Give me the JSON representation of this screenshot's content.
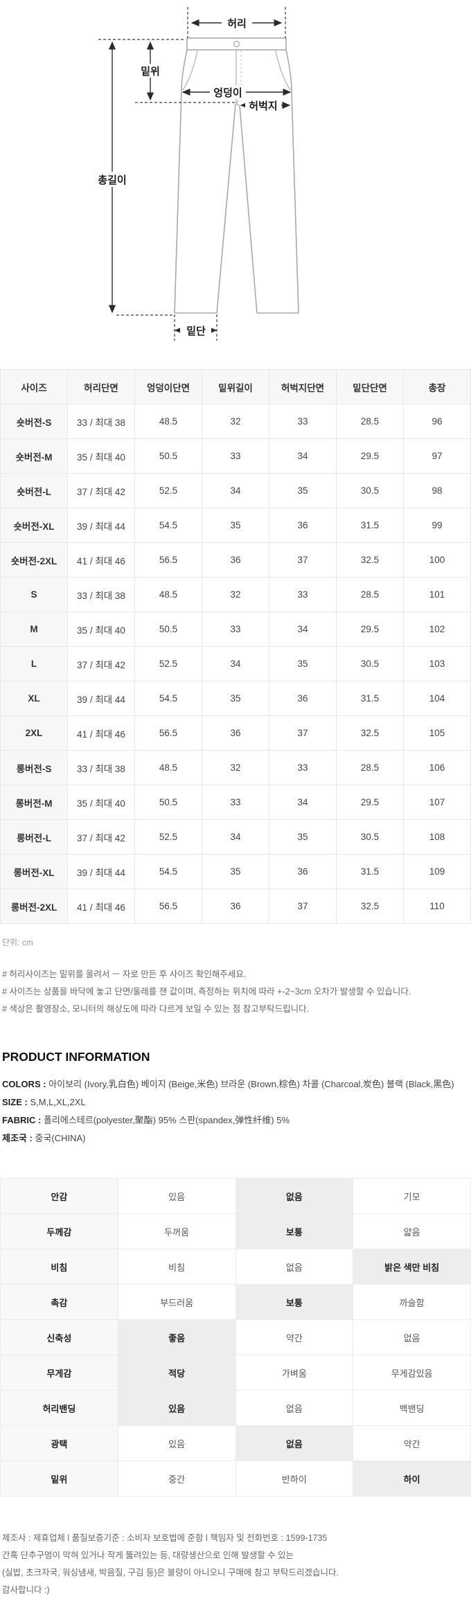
{
  "colors": {
    "table_border": "#e7e7e7",
    "header_bg": "#f7f7f7",
    "highlight_bg": "#ededed",
    "diagram_line": "#a9a9a9",
    "arrow_color": "#2b2b2b",
    "muted_text": "#999999"
  },
  "diagram": {
    "labels": {
      "waist": "허리",
      "rise": "밑위",
      "hip": "엉덩이",
      "thigh": "허벅지",
      "total_length": "총길이",
      "hem": "밑단"
    }
  },
  "size_table": {
    "headers": [
      "사이즈",
      "허리단면",
      "엉덩이단면",
      "밑위길이",
      "허벅지단면",
      "밑단단면",
      "총장"
    ],
    "rows": [
      [
        "숏버전-S",
        "33 / 최대 38",
        "48.5",
        "32",
        "33",
        "28.5",
        "96"
      ],
      [
        "숏버전-M",
        "35 / 최대 40",
        "50.5",
        "33",
        "34",
        "29.5",
        "97"
      ],
      [
        "숏버전-L",
        "37 / 최대 42",
        "52.5",
        "34",
        "35",
        "30.5",
        "98"
      ],
      [
        "숏버전-XL",
        "39 / 최대 44",
        "54.5",
        "35",
        "36",
        "31.5",
        "99"
      ],
      [
        "숏버전-2XL",
        "41 / 최대 46",
        "56.5",
        "36",
        "37",
        "32.5",
        "100"
      ],
      [
        "S",
        "33 / 최대 38",
        "48.5",
        "32",
        "33",
        "28.5",
        "101"
      ],
      [
        "M",
        "35 / 최대 40",
        "50.5",
        "33",
        "34",
        "29.5",
        "102"
      ],
      [
        "L",
        "37 / 최대 42",
        "52.5",
        "34",
        "35",
        "30.5",
        "103"
      ],
      [
        "XL",
        "39 / 최대 44",
        "54.5",
        "35",
        "36",
        "31.5",
        "104"
      ],
      [
        "2XL",
        "41 / 최대 46",
        "56.5",
        "36",
        "37",
        "32.5",
        "105"
      ],
      [
        "롱버전-S",
        "33 / 최대 38",
        "48.5",
        "32",
        "33",
        "28.5",
        "106"
      ],
      [
        "롱버전-M",
        "35 / 최대 40",
        "50.5",
        "33",
        "34",
        "29.5",
        "107"
      ],
      [
        "롱버전-L",
        "37 / 최대 42",
        "52.5",
        "34",
        "35",
        "30.5",
        "108"
      ],
      [
        "롱버전-XL",
        "39 / 최대 44",
        "54.5",
        "35",
        "36",
        "31.5",
        "109"
      ],
      [
        "롱버전-2XL",
        "41 / 최대 46",
        "56.5",
        "36",
        "37",
        "32.5",
        "110"
      ]
    ]
  },
  "notes": {
    "unit": "단위: cm",
    "lines": [
      "# 허리사이즈는 밑위를 올려서 ㅡ 자로 만든 후 사이즈 확인해주세요.",
      "# 사이즈는 상품을 바닥에 놓고 단면/둘레를 잰 값이며, 측정하는 위치에 따라 +-2~3cm 오차가 발생할 수 있습니다.",
      "# 색상은 촬영장소, 모니터의 해상도에 따라 다르게 보일 수 있는 점 참고부탁드립니다."
    ]
  },
  "product_info": {
    "title": "PRODUCT INFORMATION",
    "lines": [
      {
        "label": "COLORS",
        "value": "아이보리 (Ivory,乳白色) 베이지 (Beige,米色) 브라운 (Brown,棕色) 차콜 (Charcoal,炭色) 블랙 (Black,黑色)"
      },
      {
        "label": "SIZE",
        "value": "S,M,L,XL,2XL"
      },
      {
        "label": "FABRIC",
        "value": "폴리에스테르(polyester,聚酯) 95% 스판(spandex,弹性纤维) 5%"
      },
      {
        "label": "제조국",
        "value": "중국(CHINA)"
      }
    ]
  },
  "attribute_table": {
    "rows": [
      {
        "name": "안감",
        "options": [
          "있음",
          "없음",
          "기모"
        ],
        "selected": 1
      },
      {
        "name": "두께감",
        "options": [
          "두꺼움",
          "보통",
          "얇음"
        ],
        "selected": 1
      },
      {
        "name": "비침",
        "options": [
          "비침",
          "없음",
          "밝은 색만 비침"
        ],
        "selected": 2
      },
      {
        "name": "촉감",
        "options": [
          "부드러움",
          "보통",
          "까슬함"
        ],
        "selected": 1
      },
      {
        "name": "신축성",
        "options": [
          "좋음",
          "약간",
          "없음"
        ],
        "selected": 0
      },
      {
        "name": "무게감",
        "options": [
          "적당",
          "가벼움",
          "무게감있음"
        ],
        "selected": 0
      },
      {
        "name": "허리밴딩",
        "options": [
          "있음",
          "없음",
          "백밴딩"
        ],
        "selected": 0
      },
      {
        "name": "광택",
        "options": [
          "있음",
          "없음",
          "약간"
        ],
        "selected": 1
      },
      {
        "name": "밑위",
        "options": [
          "중간",
          "반하이",
          "하이"
        ],
        "selected": 2
      }
    ]
  },
  "footer": {
    "lines": [
      "제조사 : 제휴업체 l 품질보증기준 : 소비자 보호법에 준함 l 책임자 및 전화번호 : 1599-1735",
      "간혹 단추구멍이 막혀 있거나 작게 뚫려있는 등, 대량생산으로 인해 발생할 수 있는",
      "(실밥, 초크자국, 워싱냄새, 박음질, 구김 등)은 불량이 아니오니 구매에 참고 부탁드리겠습니다.",
      "감사합니다 :)"
    ]
  }
}
